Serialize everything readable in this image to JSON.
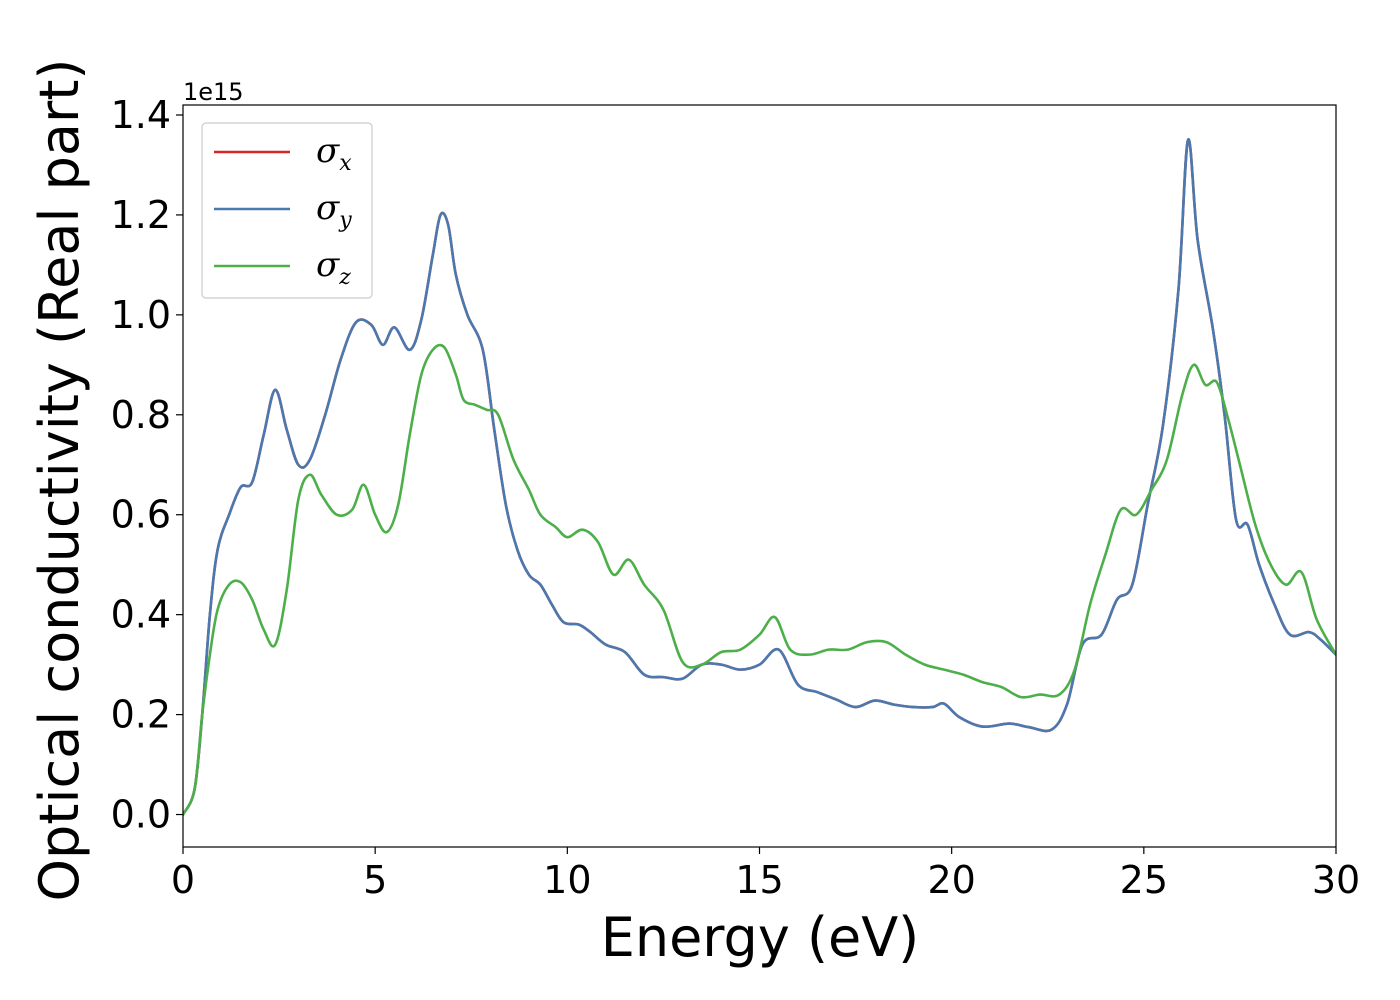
{
  "chart_data": {
    "type": "line",
    "xlabel": "Energy (eV)",
    "ylabel": "Optical conductivity (Real part)",
    "y_offset_label": "1e15",
    "xlim": [
      0,
      30
    ],
    "ylim": [
      -0.065,
      1.42
    ],
    "x_ticks": [
      0,
      5,
      10,
      15,
      20,
      25,
      30
    ],
    "x_tick_labels": [
      "0",
      "5",
      "10",
      "15",
      "20",
      "25",
      "30"
    ],
    "y_ticks": [
      0.0,
      0.2,
      0.4,
      0.6,
      0.8,
      1.0,
      1.2,
      1.4
    ],
    "y_tick_labels": [
      "0.0",
      "0.2",
      "0.4",
      "0.6",
      "0.8",
      "1.0",
      "1.2",
      "1.4"
    ],
    "grid": false,
    "legend_position": "top-left",
    "series": [
      {
        "name": "σx",
        "symbol": "σ",
        "subscript": "x",
        "color": "#d62728",
        "points": [
          [
            0,
            0
          ],
          [
            0.3,
            0.05
          ],
          [
            0.5,
            0.2
          ],
          [
            0.7,
            0.4
          ],
          [
            0.9,
            0.53
          ],
          [
            1.2,
            0.6
          ],
          [
            1.5,
            0.655
          ],
          [
            1.8,
            0.665
          ],
          [
            2.1,
            0.76
          ],
          [
            2.4,
            0.85
          ],
          [
            2.7,
            0.77
          ],
          [
            3.0,
            0.7
          ],
          [
            3.3,
            0.71
          ],
          [
            3.7,
            0.8
          ],
          [
            4.1,
            0.91
          ],
          [
            4.5,
            0.985
          ],
          [
            4.9,
            0.98
          ],
          [
            5.2,
            0.94
          ],
          [
            5.5,
            0.975
          ],
          [
            5.9,
            0.93
          ],
          [
            6.2,
            0.99
          ],
          [
            6.5,
            1.12
          ],
          [
            6.7,
            1.2
          ],
          [
            6.9,
            1.18
          ],
          [
            7.1,
            1.08
          ],
          [
            7.4,
            1.0
          ],
          [
            7.8,
            0.93
          ],
          [
            8.1,
            0.77
          ],
          [
            8.4,
            0.62
          ],
          [
            8.7,
            0.53
          ],
          [
            9.0,
            0.48
          ],
          [
            9.3,
            0.46
          ],
          [
            9.6,
            0.42
          ],
          [
            9.9,
            0.385
          ],
          [
            10.3,
            0.38
          ],
          [
            10.6,
            0.365
          ],
          [
            11.0,
            0.34
          ],
          [
            11.5,
            0.325
          ],
          [
            12.0,
            0.28
          ],
          [
            12.5,
            0.275
          ],
          [
            13.0,
            0.272
          ],
          [
            13.5,
            0.3
          ],
          [
            14.0,
            0.3
          ],
          [
            14.5,
            0.29
          ],
          [
            15.0,
            0.3
          ],
          [
            15.5,
            0.33
          ],
          [
            16.0,
            0.26
          ],
          [
            16.5,
            0.245
          ],
          [
            17.0,
            0.23
          ],
          [
            17.5,
            0.215
          ],
          [
            18.0,
            0.228
          ],
          [
            18.5,
            0.22
          ],
          [
            19.0,
            0.215
          ],
          [
            19.5,
            0.215
          ],
          [
            19.8,
            0.222
          ],
          [
            20.2,
            0.195
          ],
          [
            20.8,
            0.176
          ],
          [
            21.5,
            0.182
          ],
          [
            22.0,
            0.175
          ],
          [
            22.6,
            0.17
          ],
          [
            23.0,
            0.22
          ],
          [
            23.4,
            0.34
          ],
          [
            23.9,
            0.36
          ],
          [
            24.3,
            0.43
          ],
          [
            24.7,
            0.46
          ],
          [
            25.1,
            0.62
          ],
          [
            25.5,
            0.78
          ],
          [
            25.9,
            1.05
          ],
          [
            26.15,
            1.35
          ],
          [
            26.4,
            1.15
          ],
          [
            26.8,
            0.97
          ],
          [
            27.1,
            0.8
          ],
          [
            27.4,
            0.59
          ],
          [
            27.7,
            0.58
          ],
          [
            28.0,
            0.5
          ],
          [
            28.4,
            0.42
          ],
          [
            28.8,
            0.36
          ],
          [
            29.3,
            0.365
          ],
          [
            29.6,
            0.35
          ],
          [
            30.0,
            0.32
          ]
        ]
      },
      {
        "name": "σy",
        "symbol": "σ",
        "subscript": "y",
        "color": "#4a79b0",
        "points": [
          [
            0,
            0
          ],
          [
            0.3,
            0.05
          ],
          [
            0.5,
            0.2
          ],
          [
            0.7,
            0.4
          ],
          [
            0.9,
            0.53
          ],
          [
            1.2,
            0.6
          ],
          [
            1.5,
            0.655
          ],
          [
            1.8,
            0.665
          ],
          [
            2.1,
            0.76
          ],
          [
            2.4,
            0.85
          ],
          [
            2.7,
            0.77
          ],
          [
            3.0,
            0.7
          ],
          [
            3.3,
            0.71
          ],
          [
            3.7,
            0.8
          ],
          [
            4.1,
            0.91
          ],
          [
            4.5,
            0.985
          ],
          [
            4.9,
            0.98
          ],
          [
            5.2,
            0.94
          ],
          [
            5.5,
            0.975
          ],
          [
            5.9,
            0.93
          ],
          [
            6.2,
            0.99
          ],
          [
            6.5,
            1.12
          ],
          [
            6.7,
            1.2
          ],
          [
            6.9,
            1.18
          ],
          [
            7.1,
            1.08
          ],
          [
            7.4,
            1.0
          ],
          [
            7.8,
            0.93
          ],
          [
            8.1,
            0.77
          ],
          [
            8.4,
            0.62
          ],
          [
            8.7,
            0.53
          ],
          [
            9.0,
            0.48
          ],
          [
            9.3,
            0.46
          ],
          [
            9.6,
            0.42
          ],
          [
            9.9,
            0.385
          ],
          [
            10.3,
            0.38
          ],
          [
            10.6,
            0.365
          ],
          [
            11.0,
            0.34
          ],
          [
            11.5,
            0.325
          ],
          [
            12.0,
            0.28
          ],
          [
            12.5,
            0.275
          ],
          [
            13.0,
            0.272
          ],
          [
            13.5,
            0.3
          ],
          [
            14.0,
            0.3
          ],
          [
            14.5,
            0.29
          ],
          [
            15.0,
            0.3
          ],
          [
            15.5,
            0.33
          ],
          [
            16.0,
            0.26
          ],
          [
            16.5,
            0.245
          ],
          [
            17.0,
            0.23
          ],
          [
            17.5,
            0.215
          ],
          [
            18.0,
            0.228
          ],
          [
            18.5,
            0.22
          ],
          [
            19.0,
            0.215
          ],
          [
            19.5,
            0.215
          ],
          [
            19.8,
            0.222
          ],
          [
            20.2,
            0.195
          ],
          [
            20.8,
            0.176
          ],
          [
            21.5,
            0.182
          ],
          [
            22.0,
            0.175
          ],
          [
            22.6,
            0.17
          ],
          [
            23.0,
            0.22
          ],
          [
            23.4,
            0.34
          ],
          [
            23.9,
            0.36
          ],
          [
            24.3,
            0.43
          ],
          [
            24.7,
            0.46
          ],
          [
            25.1,
            0.62
          ],
          [
            25.5,
            0.78
          ],
          [
            25.9,
            1.05
          ],
          [
            26.15,
            1.35
          ],
          [
            26.4,
            1.15
          ],
          [
            26.8,
            0.97
          ],
          [
            27.1,
            0.8
          ],
          [
            27.4,
            0.59
          ],
          [
            27.7,
            0.58
          ],
          [
            28.0,
            0.5
          ],
          [
            28.4,
            0.42
          ],
          [
            28.8,
            0.36
          ],
          [
            29.3,
            0.365
          ],
          [
            29.6,
            0.35
          ],
          [
            30.0,
            0.32
          ]
        ]
      },
      {
        "name": "σz",
        "symbol": "σ",
        "subscript": "z",
        "color": "#4daf4a",
        "points": [
          [
            0,
            0
          ],
          [
            0.3,
            0.05
          ],
          [
            0.5,
            0.2
          ],
          [
            0.7,
            0.32
          ],
          [
            0.9,
            0.41
          ],
          [
            1.2,
            0.46
          ],
          [
            1.5,
            0.465
          ],
          [
            1.8,
            0.43
          ],
          [
            2.1,
            0.37
          ],
          [
            2.4,
            0.34
          ],
          [
            2.7,
            0.45
          ],
          [
            3.0,
            0.63
          ],
          [
            3.3,
            0.68
          ],
          [
            3.6,
            0.64
          ],
          [
            4.0,
            0.6
          ],
          [
            4.4,
            0.61
          ],
          [
            4.7,
            0.66
          ],
          [
            5.0,
            0.6
          ],
          [
            5.3,
            0.565
          ],
          [
            5.6,
            0.62
          ],
          [
            5.9,
            0.76
          ],
          [
            6.2,
            0.88
          ],
          [
            6.5,
            0.93
          ],
          [
            6.8,
            0.935
          ],
          [
            7.1,
            0.88
          ],
          [
            7.3,
            0.83
          ],
          [
            7.6,
            0.82
          ],
          [
            7.9,
            0.81
          ],
          [
            8.2,
            0.8
          ],
          [
            8.6,
            0.71
          ],
          [
            9.0,
            0.65
          ],
          [
            9.3,
            0.6
          ],
          [
            9.7,
            0.575
          ],
          [
            10.0,
            0.555
          ],
          [
            10.4,
            0.57
          ],
          [
            10.8,
            0.545
          ],
          [
            11.2,
            0.48
          ],
          [
            11.6,
            0.51
          ],
          [
            12.0,
            0.46
          ],
          [
            12.5,
            0.41
          ],
          [
            13.0,
            0.305
          ],
          [
            13.5,
            0.3
          ],
          [
            14.0,
            0.325
          ],
          [
            14.5,
            0.33
          ],
          [
            15.0,
            0.36
          ],
          [
            15.4,
            0.395
          ],
          [
            15.8,
            0.33
          ],
          [
            16.3,
            0.32
          ],
          [
            16.8,
            0.33
          ],
          [
            17.3,
            0.33
          ],
          [
            17.8,
            0.345
          ],
          [
            18.3,
            0.345
          ],
          [
            18.8,
            0.32
          ],
          [
            19.3,
            0.3
          ],
          [
            19.8,
            0.29
          ],
          [
            20.3,
            0.28
          ],
          [
            20.8,
            0.265
          ],
          [
            21.3,
            0.255
          ],
          [
            21.8,
            0.235
          ],
          [
            22.3,
            0.24
          ],
          [
            22.8,
            0.24
          ],
          [
            23.2,
            0.29
          ],
          [
            23.6,
            0.42
          ],
          [
            24.0,
            0.52
          ],
          [
            24.4,
            0.61
          ],
          [
            24.8,
            0.6
          ],
          [
            25.2,
            0.65
          ],
          [
            25.6,
            0.71
          ],
          [
            26.0,
            0.84
          ],
          [
            26.3,
            0.9
          ],
          [
            26.6,
            0.86
          ],
          [
            26.9,
            0.865
          ],
          [
            27.2,
            0.79
          ],
          [
            27.5,
            0.7
          ],
          [
            27.9,
            0.58
          ],
          [
            28.3,
            0.5
          ],
          [
            28.7,
            0.46
          ],
          [
            29.1,
            0.485
          ],
          [
            29.5,
            0.39
          ],
          [
            30.0,
            0.32
          ]
        ]
      }
    ]
  }
}
